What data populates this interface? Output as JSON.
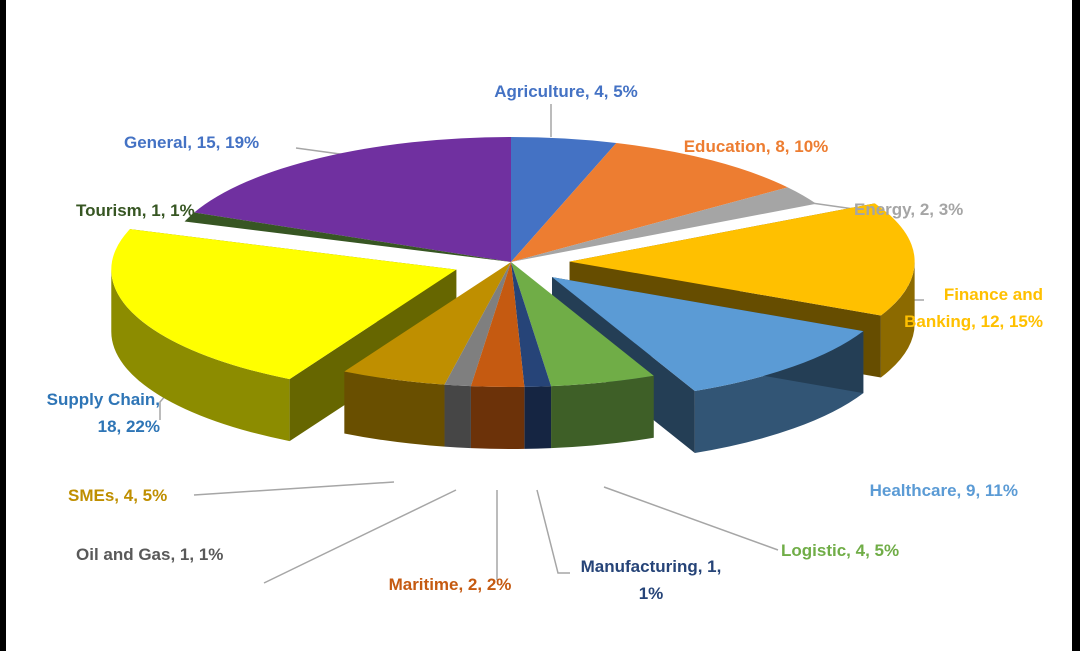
{
  "chart_data": {
    "type": "pie",
    "title": "",
    "style": "3d-exploded",
    "label_format": "{name}, {value}, {percent}",
    "slices": [
      {
        "name": "Agriculture",
        "value": 4,
        "percent": "5%",
        "color": "#4472C4",
        "label_lines": [
          "Agriculture, 4, 5%"
        ]
      },
      {
        "name": "Education",
        "value": 8,
        "percent": "10%",
        "color": "#ED7D31",
        "label_lines": [
          "Education, 8, 10%"
        ]
      },
      {
        "name": "Energy",
        "value": 2,
        "percent": "3%",
        "color": "#A5A5A5",
        "label_lines": [
          "Energy, 2, 3%"
        ]
      },
      {
        "name": "Finance and Banking",
        "value": 12,
        "percent": "15%",
        "color": "#FFC000",
        "label_lines": [
          "Finance and",
          "Banking, 12, 15%"
        ]
      },
      {
        "name": "Healthcare",
        "value": 9,
        "percent": "11%",
        "color": "#5B9BD5",
        "label_lines": [
          "Healthcare, 9, 11%"
        ]
      },
      {
        "name": "Logistic",
        "value": 4,
        "percent": "5%",
        "color": "#70AD47",
        "label_lines": [
          "Logistic, 4, 5%"
        ]
      },
      {
        "name": "Manufacturing",
        "value": 1,
        "percent": "1%",
        "color": "#264478",
        "label_lines": [
          "Manufacturing, 1,",
          "1%"
        ]
      },
      {
        "name": "Maritime",
        "value": 2,
        "percent": "2%",
        "color": "#C55A11",
        "label_lines": [
          "Maritime, 2, 2%"
        ]
      },
      {
        "name": "Oil and Gas",
        "value": 1,
        "percent": "1%",
        "color": "#7F7F7F",
        "label_lines": [
          "Oil and Gas, 1, 1%"
        ]
      },
      {
        "name": "SMEs",
        "value": 4,
        "percent": "5%",
        "color": "#BF8F00",
        "label_lines": [
          "SMEs, 4, 5%"
        ]
      },
      {
        "name": "Supply Chain",
        "value": 18,
        "percent": "22%",
        "color": "#FFFF00",
        "label_lines": [
          "Supply Chain,",
          "18, 22%"
        ]
      },
      {
        "name": "Tourism",
        "value": 1,
        "percent": "1%",
        "color": "#375623",
        "label_lines": [
          "Tourism, 1, 1%"
        ]
      },
      {
        "name": "General",
        "value": 15,
        "percent": "19%",
        "color": "#7030A0",
        "label_lines": [
          "General, 15, 19%"
        ]
      }
    ],
    "label_colors": {
      "Agriculture": "#4472C4",
      "Education": "#ED7D31",
      "Energy": "#A5A5A5",
      "Finance and Banking": "#FFC000",
      "Healthcare": "#5B9BD5",
      "Logistic": "#70AD47",
      "Manufacturing": "#264478",
      "Maritime": "#C55A11",
      "Oil and Gas": "#595959",
      "SMEs": "#BF8F00",
      "Supply Chain": "#2E75B6",
      "Tourism": "#375623",
      "General": "#4472C4"
    }
  }
}
